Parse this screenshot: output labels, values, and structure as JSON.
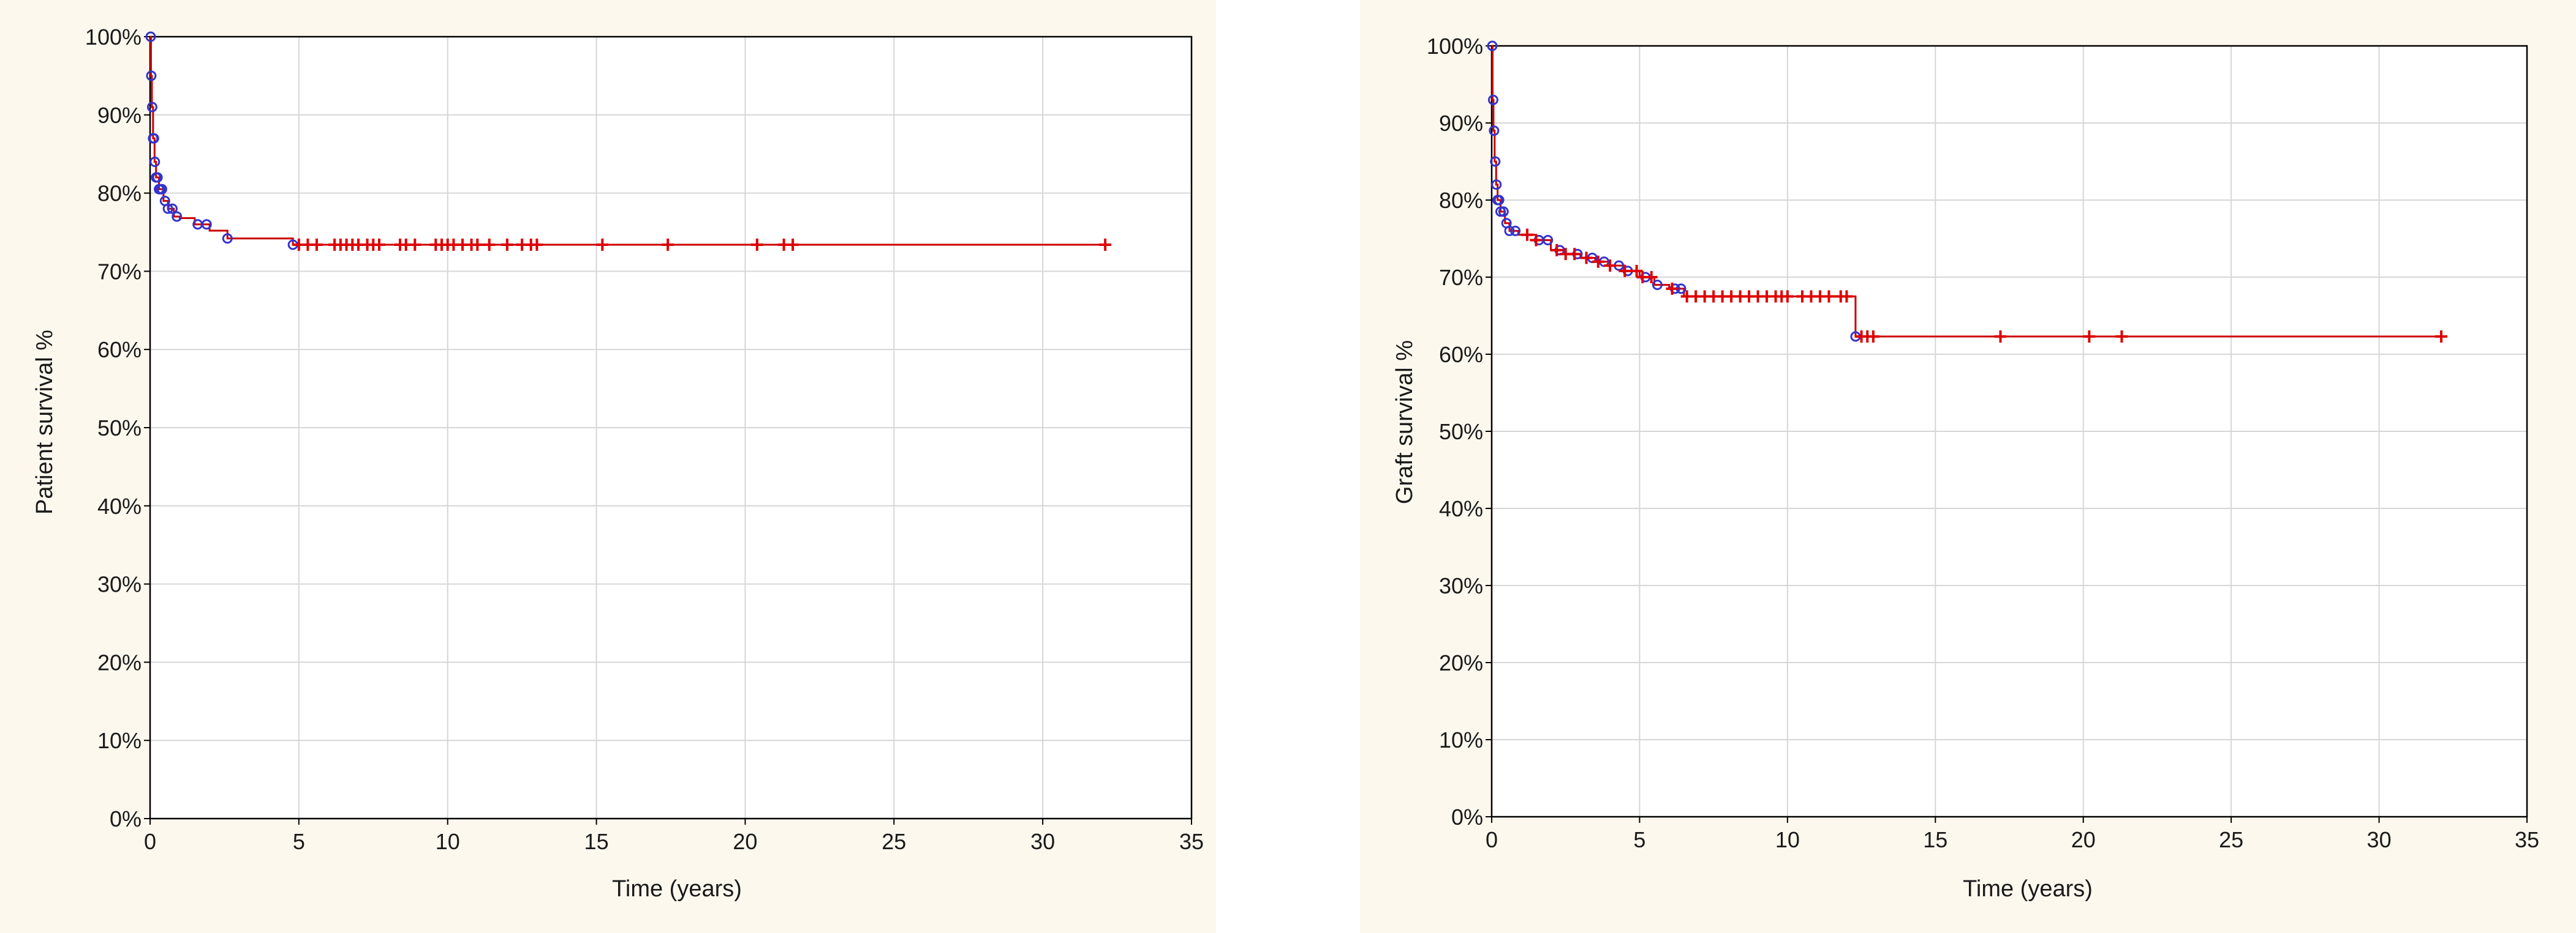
{
  "chart_data": [
    {
      "type": "line",
      "subtype": "kaplan-meier",
      "xlabel": "Time (years)",
      "ylabel": "Patient survival %",
      "xlim": [
        0,
        35
      ],
      "ylim": [
        0,
        100
      ],
      "xticks": [
        "0",
        "5",
        "10",
        "15",
        "20",
        "25",
        "30",
        "35"
      ],
      "yticks": [
        "0%",
        "10%",
        "20%",
        "30%",
        "40%",
        "50%",
        "60%",
        "70%",
        "80%",
        "90%",
        "100%"
      ],
      "grid": true,
      "series": [
        {
          "line_color": "#cc0000",
          "event_marker_color": "#3333cc",
          "censor_marker_color": "#dd0000",
          "steps": [
            [
              0,
              100
            ],
            [
              0.03,
              95
            ],
            [
              0.06,
              91
            ],
            [
              0.1,
              87
            ],
            [
              0.15,
              84
            ],
            [
              0.2,
              82
            ],
            [
              0.3,
              80.5
            ],
            [
              0.45,
              79
            ],
            [
              0.6,
              78
            ],
            [
              0.8,
              77
            ],
            [
              1.0,
              76.8
            ],
            [
              1.5,
              76
            ],
            [
              2.0,
              75.2
            ],
            [
              2.6,
              74.2
            ],
            [
              4.8,
              73.4
            ],
            [
              32.1,
              73.4
            ]
          ],
          "events_x": [
            0.02,
            0.04,
            0.07,
            0.1,
            0.13,
            0.16,
            0.2,
            0.25,
            0.3,
            0.35,
            0.4,
            0.5,
            0.6,
            0.75,
            0.9,
            1.6,
            1.9,
            2.6,
            4.8
          ],
          "censored_x": [
            5.0,
            5.3,
            5.6,
            6.2,
            6.4,
            6.6,
            6.8,
            7.0,
            7.3,
            7.5,
            7.7,
            8.4,
            8.6,
            8.9,
            9.6,
            9.8,
            10.0,
            10.2,
            10.5,
            10.8,
            11.0,
            11.4,
            12.0,
            12.5,
            12.8,
            13.0,
            15.2,
            17.4,
            20.4,
            21.3,
            21.6,
            32.1
          ]
        }
      ]
    },
    {
      "type": "line",
      "subtype": "kaplan-meier",
      "xlabel": "Time (years)",
      "ylabel": "Graft survival %",
      "xlim": [
        0,
        35
      ],
      "ylim": [
        0,
        100
      ],
      "xticks": [
        "0",
        "5",
        "10",
        "15",
        "20",
        "25",
        "30",
        "35"
      ],
      "yticks": [
        "0%",
        "10%",
        "20%",
        "30%",
        "40%",
        "50%",
        "60%",
        "70%",
        "80%",
        "90%",
        "100%"
      ],
      "grid": true,
      "series": [
        {
          "line_color": "#cc0000",
          "event_marker_color": "#3333cc",
          "censor_marker_color": "#dd0000",
          "steps": [
            [
              0,
              100
            ],
            [
              0.03,
              93
            ],
            [
              0.06,
              89
            ],
            [
              0.1,
              85
            ],
            [
              0.15,
              82
            ],
            [
              0.2,
              80
            ],
            [
              0.3,
              78.5
            ],
            [
              0.45,
              77
            ],
            [
              0.6,
              76
            ],
            [
              0.9,
              75.5
            ],
            [
              1.5,
              74.8
            ],
            [
              2.0,
              73.5
            ],
            [
              2.5,
              73
            ],
            [
              3.0,
              72.5
            ],
            [
              3.5,
              72
            ],
            [
              4.0,
              71.5
            ],
            [
              4.5,
              70.8
            ],
            [
              5.0,
              70
            ],
            [
              5.5,
              69
            ],
            [
              6.0,
              68.5
            ],
            [
              6.5,
              67.5
            ],
            [
              12.3,
              62.3
            ],
            [
              32.1,
              62.3
            ]
          ],
          "events_x": [
            0.02,
            0.05,
            0.08,
            0.12,
            0.16,
            0.2,
            0.25,
            0.3,
            0.4,
            0.5,
            0.6,
            0.8,
            1.6,
            1.9,
            2.3,
            2.9,
            3.4,
            3.8,
            4.3,
            4.6,
            5.2,
            5.6,
            6.2,
            6.4,
            12.3
          ],
          "censored_x": [
            1.2,
            1.5,
            2.2,
            2.5,
            2.8,
            3.2,
            3.6,
            4.0,
            4.5,
            4.9,
            5.1,
            5.4,
            6.1,
            6.6,
            6.9,
            7.2,
            7.5,
            7.8,
            8.1,
            8.4,
            8.7,
            9.0,
            9.3,
            9.6,
            9.8,
            10.0,
            10.5,
            10.8,
            11.1,
            11.4,
            11.8,
            12.0,
            12.5,
            12.7,
            12.9,
            17.2,
            20.2,
            21.3,
            32.1
          ]
        }
      ]
    }
  ]
}
